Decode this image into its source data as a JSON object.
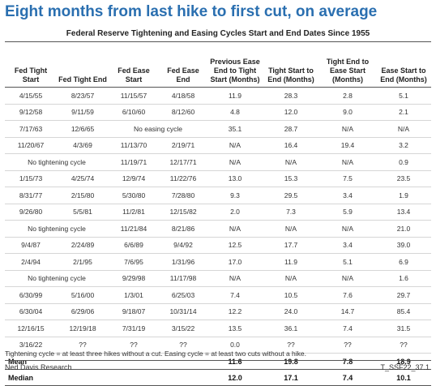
{
  "title": "Eight months from last hike to first cut, on average",
  "subtitle": "Federal Reserve Tightening and Easing Cycles Start and End Dates Since 1955",
  "columns": [
    "Fed Tight Start",
    "Fed Tight End",
    "Fed Ease Start",
    "Fed Ease End",
    "Previous Ease End to Tight Start (Months)",
    "Tight Start to End (Months)",
    "Tight End to Ease Start (Months)",
    "Ease Start to End (Months)"
  ],
  "rows": [
    {
      "tight_start": "4/15/55",
      "tight_end": "8/23/57",
      "ease_start": "11/15/57",
      "ease_end": "4/18/58",
      "prev": "11.9",
      "tight": "28.3",
      "gap": "2.8",
      "ease": "5.1"
    },
    {
      "tight_start": "9/12/58",
      "tight_end": "9/11/59",
      "ease_start": "6/10/60",
      "ease_end": "8/12/60",
      "prev": "4.8",
      "tight": "12.0",
      "gap": "9.0",
      "ease": "2.1"
    },
    {
      "tight_start": "7/17/63",
      "tight_end": "12/6/65",
      "ease_span": "No easing cycle",
      "prev": "35.1",
      "tight": "28.7",
      "gap": "N/A",
      "ease": "N/A"
    },
    {
      "tight_start": "11/20/67",
      "tight_end": "4/3/69",
      "ease_start": "11/13/70",
      "ease_end": "2/19/71",
      "prev": "N/A",
      "tight": "16.4",
      "gap": "19.4",
      "ease": "3.2"
    },
    {
      "tight_span": "No tightening cycle",
      "ease_start": "11/19/71",
      "ease_end": "12/17/71",
      "prev": "N/A",
      "tight": "N/A",
      "gap": "N/A",
      "ease": "0.9"
    },
    {
      "tight_start": "1/15/73",
      "tight_end": "4/25/74",
      "ease_start": "12/9/74",
      "ease_end": "11/22/76",
      "prev": "13.0",
      "tight": "15.3",
      "gap": "7.5",
      "ease": "23.5"
    },
    {
      "tight_start": "8/31/77",
      "tight_end": "2/15/80",
      "ease_start": "5/30/80",
      "ease_end": "7/28/80",
      "prev": "9.3",
      "tight": "29.5",
      "gap": "3.4",
      "ease": "1.9"
    },
    {
      "tight_start": "9/26/80",
      "tight_end": "5/5/81",
      "ease_start": "11/2/81",
      "ease_end": "12/15/82",
      "prev": "2.0",
      "tight": "7.3",
      "gap": "5.9",
      "ease": "13.4"
    },
    {
      "tight_span": "No tightening cycle",
      "ease_start": "11/21/84",
      "ease_end": "8/21/86",
      "prev": "N/A",
      "tight": "N/A",
      "gap": "N/A",
      "ease": "21.0"
    },
    {
      "tight_start": "9/4/87",
      "tight_end": "2/24/89",
      "ease_start": "6/6/89",
      "ease_end": "9/4/92",
      "prev": "12.5",
      "tight": "17.7",
      "gap": "3.4",
      "ease": "39.0"
    },
    {
      "tight_start": "2/4/94",
      "tight_end": "2/1/95",
      "ease_start": "7/6/95",
      "ease_end": "1/31/96",
      "prev": "17.0",
      "tight": "11.9",
      "gap": "5.1",
      "ease": "6.9"
    },
    {
      "tight_span": "No tightening cycle",
      "ease_start": "9/29/98",
      "ease_end": "11/17/98",
      "prev": "N/A",
      "tight": "N/A",
      "gap": "N/A",
      "ease": "1.6"
    },
    {
      "tight_start": "6/30/99",
      "tight_end": "5/16/00",
      "ease_start": "1/3/01",
      "ease_end": "6/25/03",
      "prev": "7.4",
      "tight": "10.5",
      "gap": "7.6",
      "ease": "29.7"
    },
    {
      "tight_start": "6/30/04",
      "tight_end": "6/29/06",
      "ease_start": "9/18/07",
      "ease_end": "10/31/14",
      "prev": "12.2",
      "tight": "24.0",
      "gap": "14.7",
      "ease": "85.4"
    },
    {
      "tight_start": "12/16/15",
      "tight_end": "12/19/18",
      "ease_start": "7/31/19",
      "ease_end": "3/15/22",
      "prev": "13.5",
      "tight": "36.1",
      "gap": "7.4",
      "ease": "31.5"
    },
    {
      "tight_start": "3/16/22",
      "tight_end": "??",
      "ease_start": "??",
      "ease_end": "??",
      "prev": "0.0",
      "tight": "??",
      "gap": "??",
      "ease": "??"
    }
  ],
  "mean": {
    "label": "Mean",
    "prev": "11.6",
    "tight": "19.8",
    "gap": "7.8",
    "ease": "18.9"
  },
  "median": {
    "label": "Median",
    "prev": "12.0",
    "tight": "17.1",
    "gap": "7.4",
    "ease": "10.1"
  },
  "footnote": "Tightening cycle = at least three hikes without a cut. Easing cycle = at least two cuts without a hike.",
  "source": "Ned Davis Research",
  "code": "T_SSF22_37.1"
}
